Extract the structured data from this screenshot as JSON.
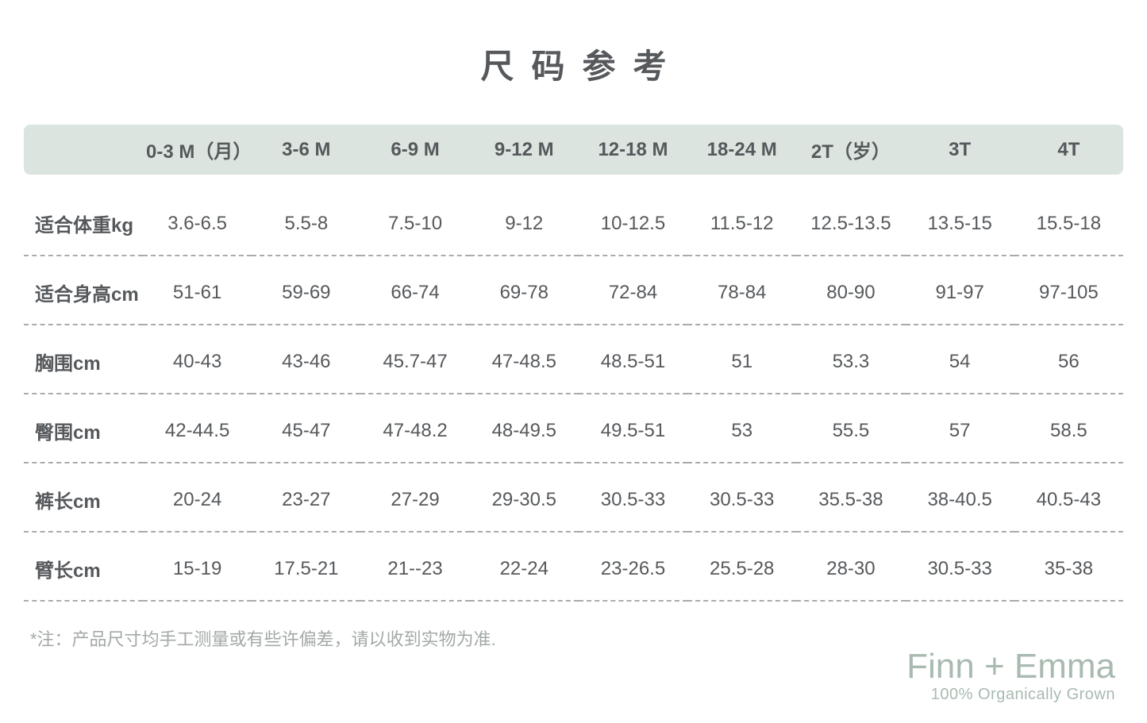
{
  "title": "尺码参考",
  "colors": {
    "header_bg": "#dce4df",
    "text": "#56595c",
    "footnote": "#a4a8a9",
    "divider": "#a8abac",
    "brand": "#a9bab0",
    "page_bg": "#ffffff"
  },
  "typography": {
    "title_fontsize": 42,
    "title_letter_spacing": 22,
    "header_fontsize": 24,
    "cell_fontsize": 24,
    "footnote_fontsize": 22,
    "brand_main_fontsize": 44,
    "brand_sub_fontsize": 20
  },
  "table": {
    "columns": [
      "",
      "0-3 M（月）",
      "3-6 M",
      "6-9 M",
      "9-12 M",
      "12-18 M",
      "18-24 M",
      "2T（岁）",
      "3T",
      "4T"
    ],
    "rows": [
      {
        "label": "适合体重kg",
        "cells": [
          "3.6-6.5",
          "5.5-8",
          "7.5-10",
          "9-12",
          "10-12.5",
          "11.5-12",
          "12.5-13.5",
          "13.5-15",
          "15.5-18"
        ]
      },
      {
        "label": "适合身高cm",
        "cells": [
          "51-61",
          "59-69",
          "66-74",
          "69-78",
          "72-84",
          "78-84",
          "80-90",
          "91-97",
          "97-105"
        ]
      },
      {
        "label": "胸围cm",
        "cells": [
          "40-43",
          "43-46",
          "45.7-47",
          "47-48.5",
          "48.5-51",
          "51",
          "53.3",
          "54",
          "56"
        ]
      },
      {
        "label": "臀围cm",
        "cells": [
          "42-44.5",
          "45-47",
          "47-48.2",
          "48-49.5",
          "49.5-51",
          "53",
          "55.5",
          "57",
          "58.5"
        ]
      },
      {
        "label": "裤长cm",
        "cells": [
          "20-24",
          "23-27",
          "27-29",
          "29-30.5",
          "30.5-33",
          "30.5-33",
          "35.5-38",
          "38-40.5",
          "40.5-43"
        ]
      },
      {
        "label": "臂长cm",
        "cells": [
          "15-19",
          "17.5-21",
          "21--23",
          "22-24",
          "23-26.5",
          "25.5-28",
          "28-30",
          "30.5-33",
          "35-38"
        ]
      }
    ]
  },
  "footnote": "*注：产品尺寸均手工测量或有些许偏差，请以收到实物为准.",
  "brand": {
    "main": "Finn + Emma",
    "sub": "100% Organically Grown"
  }
}
